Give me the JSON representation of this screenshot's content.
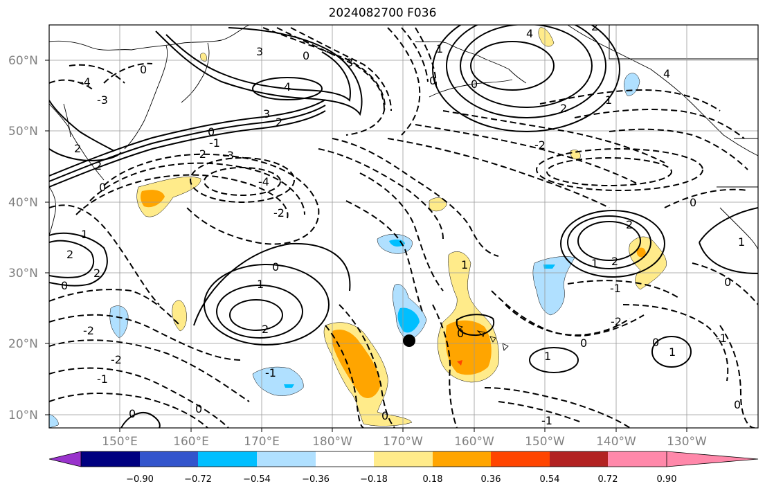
{
  "title": "2024082700 F036",
  "axes": {
    "lat_labels": [
      "10°N",
      "20°N",
      "30°N",
      "40°N",
      "50°N",
      "60°N"
    ],
    "lon_labels": [
      "150°E",
      "160°E",
      "170°E",
      "180°W",
      "170°W",
      "160°W",
      "150°W",
      "140°W",
      "130°W"
    ]
  },
  "colorbar": {
    "tick_labels": [
      "−0.90",
      "−0.72",
      "−0.54",
      "−0.36",
      "−0.18",
      "0.18",
      "0.36",
      "0.54",
      "0.72",
      "0.90"
    ],
    "colors": [
      "#9933cc",
      "#000080",
      "#3355cc",
      "#00bfff",
      "#b0e0ff",
      "#ffffff",
      "#ffeb8a",
      "#ffa500",
      "#ff4500",
      "#b22222",
      "#ff88aa"
    ]
  },
  "contour_labels": [
    "4",
    "3",
    "2",
    "1",
    "0",
    "-1",
    "-2",
    "-3",
    "-4"
  ],
  "marker": "storm-center"
}
